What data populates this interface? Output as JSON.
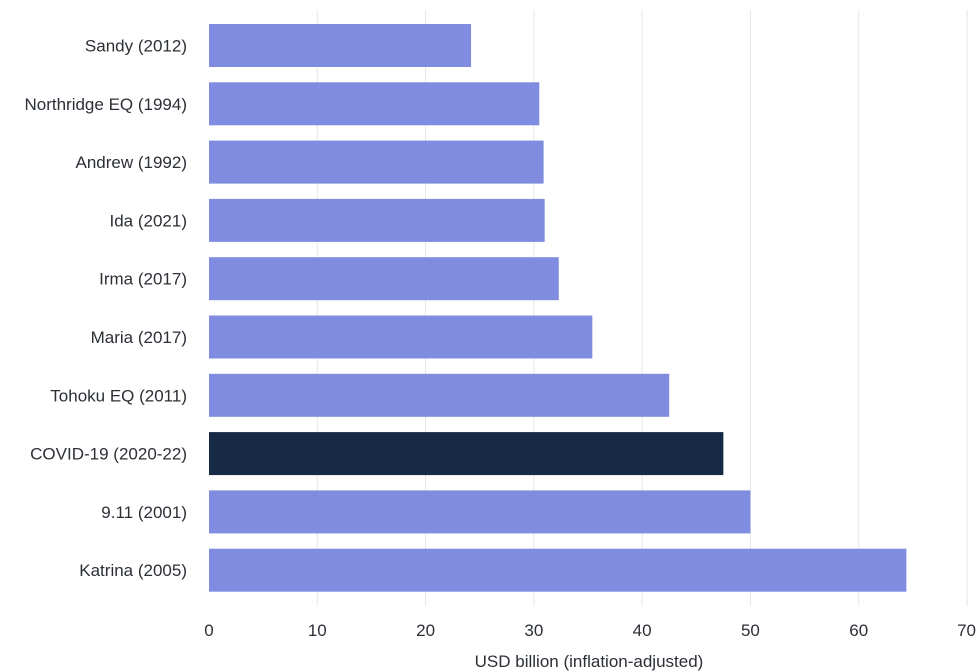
{
  "chart_data": {
    "type": "bar",
    "orientation": "horizontal",
    "categories": [
      "Sandy (2012)",
      "Northridge EQ (1994)",
      "Andrew (1992)",
      "Ida (2021)",
      "Irma (2017)",
      "Maria (2017)",
      "Tohoku EQ (2011)",
      "COVID-19 (2020-22)",
      "9.11 (2001)",
      "Katrina (2005)"
    ],
    "values": [
      24.2,
      30.5,
      30.9,
      31.0,
      32.3,
      35.4,
      42.5,
      47.5,
      50.0,
      64.4
    ],
    "highlight_category": "COVID-19 (2020-22)",
    "xlabel": "USD billion (inflation-adjusted)",
    "ylabel": "",
    "xlim": [
      0,
      70
    ],
    "xticks": [
      0,
      10,
      20,
      30,
      40,
      50,
      60,
      70
    ],
    "grid": "vertical",
    "colors": {
      "bar": "#7f8ce0",
      "highlight": "#172a45",
      "grid": "#e6e6e6",
      "text": "#2b2f36"
    }
  }
}
